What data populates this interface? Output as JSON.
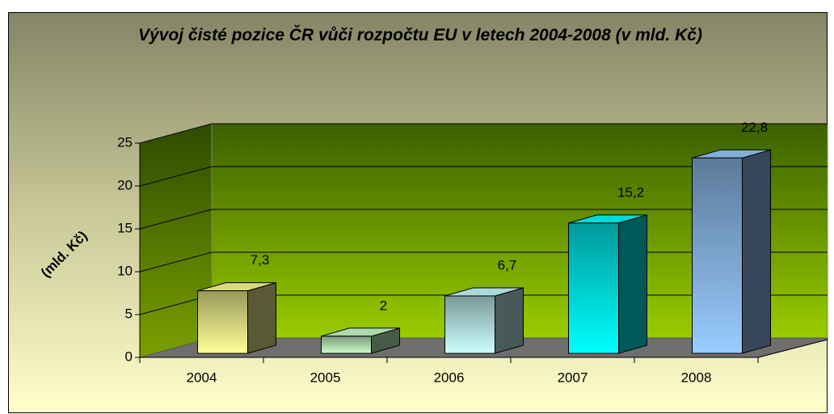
{
  "chart_data": {
    "type": "bar3d",
    "title": "Vývoj čisté pozice ČR vůči rozpočtu EU v letech 2004-2008 (v mld. Kč)",
    "y_label": "(mld. Kč)",
    "categories": [
      "2004",
      "2005",
      "2006",
      "2007",
      "2008"
    ],
    "values": [
      7.3,
      2,
      6.7,
      15.2,
      22.8
    ],
    "value_labels": [
      "7,3",
      "2",
      "6,7",
      "15,2",
      "22,8"
    ],
    "colors": [
      "#ffff99",
      "#ccffcc",
      "#ccffff",
      "#00ffff",
      "#99ccff"
    ],
    "ylim": [
      0,
      25
    ],
    "yticks": [
      0,
      5,
      10,
      15,
      20,
      25
    ],
    "grid": true
  }
}
